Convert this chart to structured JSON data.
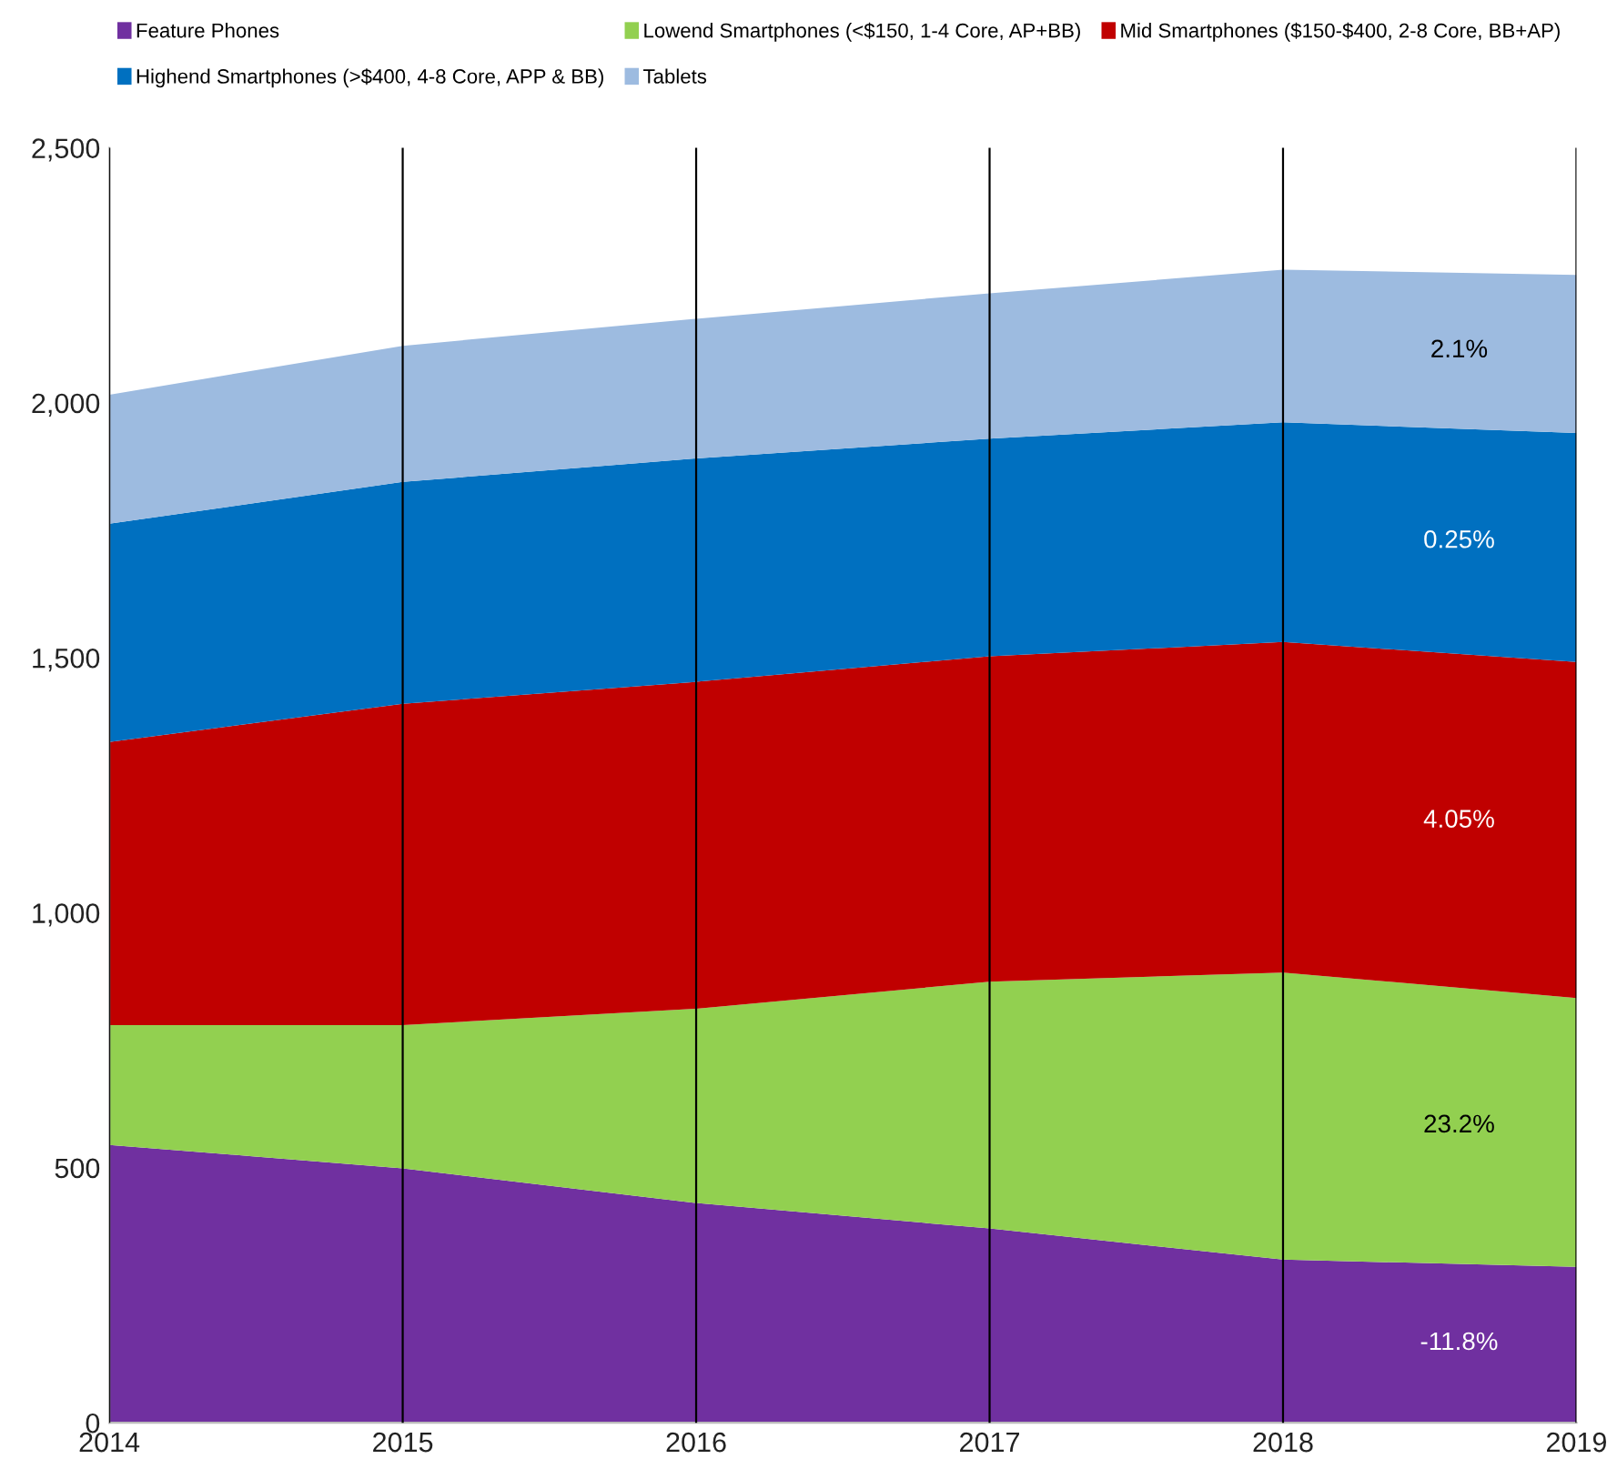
{
  "chart_data": {
    "type": "area",
    "stacked": true,
    "x": [
      2014,
      2015,
      2016,
      2017,
      2018,
      2019
    ],
    "series": [
      {
        "name": "Feature Phones",
        "color": "#7030a0",
        "values": [
          545,
          499,
          431,
          381,
          320,
          306
        ]
      },
      {
        "name": "Lowend Smartphones (<$150, 1-4 Core, AP+BB)",
        "color": "#92d050",
        "values": [
          235,
          281,
          381,
          484,
          563,
          527
        ]
      },
      {
        "name": "Mid Smartphones ($150-$400, 2-8 Core, BB+AP)",
        "color": "#c00000",
        "values": [
          555,
          630,
          641,
          638,
          648,
          659
        ]
      },
      {
        "name": "Highend Smartphones (>$400, 4-8 Core, APP & BB)",
        "color": "#0070c0",
        "values": [
          428,
          435,
          438,
          427,
          431,
          449
        ]
      },
      {
        "name": "Tablets",
        "color": "#9dbbe0",
        "values": [
          253,
          267,
          274,
          285,
          299,
          310
        ]
      }
    ],
    "xlim": [
      2014,
      2019
    ],
    "xticks": [
      2014,
      2015,
      2016,
      2017,
      2018,
      2019
    ],
    "ylim": [
      0,
      2500
    ],
    "yticks": [
      0,
      500,
      {
        "value": 1000,
        "label": "1,000"
      },
      {
        "value": 1500,
        "label": "1,500"
      },
      {
        "value": 2000,
        "label": "2,000"
      },
      {
        "value": 2500,
        "label": "2,500"
      }
    ],
    "grid": "x",
    "legend": "top",
    "annotations": [
      "-11.8%",
      "23.2%",
      "4.05%",
      "0.25%",
      "2.1%"
    ]
  }
}
